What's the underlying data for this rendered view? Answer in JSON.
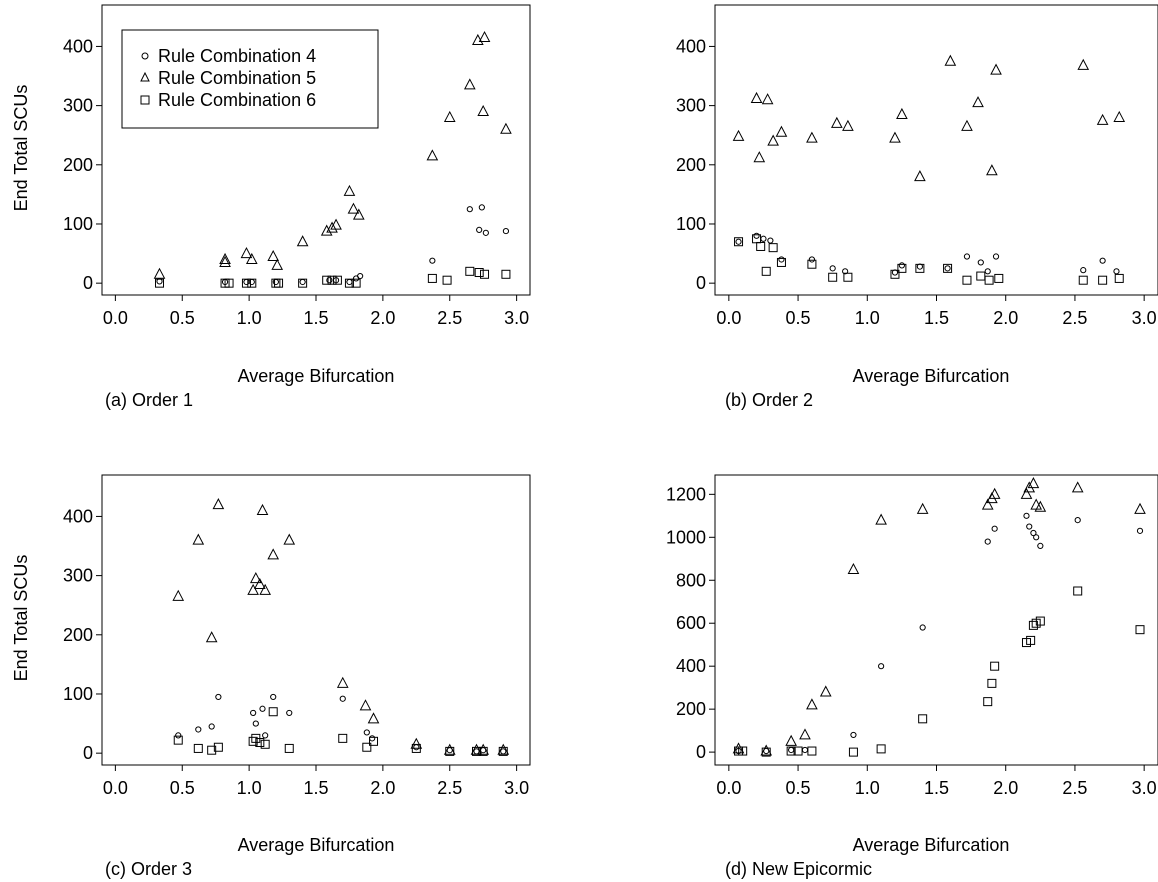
{
  "legend": {
    "entries": [
      {
        "name": "Rule Combination 4",
        "marker": "circle"
      },
      {
        "name": "Rule Combination 5",
        "marker": "triangle"
      },
      {
        "name": "Rule Combination 6",
        "marker": "square"
      }
    ]
  },
  "chart_data": [
    {
      "type": "scatter",
      "panel_label": "(a) Order 1",
      "xlabel": "Average Bifurcation",
      "ylabel": "End Total SCUs",
      "xlim": [
        -0.1,
        3.1
      ],
      "ylim": [
        -20,
        470
      ],
      "xticks": [
        "0.0",
        "0.5",
        "1.0",
        "1.5",
        "2.0",
        "2.5",
        "3.0"
      ],
      "yticks": [
        "0",
        "100",
        "200",
        "300",
        "400"
      ],
      "legend": "top-left",
      "series": [
        {
          "name": "Rule Combination 4",
          "marker": "circle",
          "points": [
            [
              0.33,
              3
            ],
            [
              0.82,
              2
            ],
            [
              0.98,
              2
            ],
            [
              1.02,
              2
            ],
            [
              1.2,
              2
            ],
            [
              1.4,
              2
            ],
            [
              1.6,
              5
            ],
            [
              1.65,
              5
            ],
            [
              1.75,
              2
            ],
            [
              1.8,
              8
            ],
            [
              1.83,
              12
            ],
            [
              2.37,
              38
            ],
            [
              2.65,
              125
            ],
            [
              2.72,
              90
            ],
            [
              2.74,
              128
            ],
            [
              2.77,
              85
            ],
            [
              2.92,
              88
            ]
          ]
        },
        {
          "name": "Rule Combination 5",
          "marker": "triangle",
          "points": [
            [
              0.33,
              15
            ],
            [
              0.82,
              40
            ],
            [
              0.82,
              35
            ],
            [
              0.98,
              50
            ],
            [
              1.02,
              40
            ],
            [
              1.18,
              45
            ],
            [
              1.21,
              30
            ],
            [
              1.4,
              70
            ],
            [
              1.58,
              88
            ],
            [
              1.62,
              93
            ],
            [
              1.65,
              98
            ],
            [
              1.75,
              155
            ],
            [
              1.78,
              125
            ],
            [
              1.82,
              115
            ],
            [
              2.37,
              215
            ],
            [
              2.5,
              280
            ],
            [
              2.65,
              335
            ],
            [
              2.71,
              410
            ],
            [
              2.76,
              415
            ],
            [
              2.75,
              290
            ],
            [
              2.92,
              260
            ]
          ]
        },
        {
          "name": "Rule Combination 6",
          "marker": "square",
          "points": [
            [
              0.33,
              0
            ],
            [
              0.82,
              0
            ],
            [
              0.85,
              0
            ],
            [
              0.98,
              0
            ],
            [
              1.02,
              0
            ],
            [
              1.2,
              0
            ],
            [
              1.22,
              0
            ],
            [
              1.4,
              0
            ],
            [
              1.58,
              5
            ],
            [
              1.62,
              5
            ],
            [
              1.66,
              5
            ],
            [
              1.75,
              0
            ],
            [
              1.8,
              0
            ],
            [
              2.37,
              8
            ],
            [
              2.48,
              5
            ],
            [
              2.65,
              20
            ],
            [
              2.72,
              18
            ],
            [
              2.76,
              15
            ],
            [
              2.92,
              15
            ]
          ]
        }
      ]
    },
    {
      "type": "scatter",
      "panel_label": "(b) Order 2",
      "xlabel": "Average Bifurcation",
      "ylabel": "",
      "xlim": [
        -0.1,
        3.1
      ],
      "ylim": [
        -20,
        470
      ],
      "xticks": [
        "0.0",
        "0.5",
        "1.0",
        "1.5",
        "2.0",
        "2.5",
        "3.0"
      ],
      "yticks": [
        "0",
        "100",
        "200",
        "300",
        "400"
      ],
      "legend": "none",
      "series": [
        {
          "name": "Rule Combination 4",
          "marker": "circle",
          "points": [
            [
              0.07,
              70
            ],
            [
              0.2,
              80
            ],
            [
              0.25,
              75
            ],
            [
              0.3,
              72
            ],
            [
              0.38,
              40
            ],
            [
              0.6,
              40
            ],
            [
              0.75,
              25
            ],
            [
              0.84,
              20
            ],
            [
              1.2,
              18
            ],
            [
              1.25,
              30
            ],
            [
              1.38,
              28
            ],
            [
              1.58,
              25
            ],
            [
              1.72,
              45
            ],
            [
              1.82,
              35
            ],
            [
              1.87,
              20
            ],
            [
              1.93,
              45
            ],
            [
              2.56,
              22
            ],
            [
              2.7,
              38
            ],
            [
              2.8,
              20
            ]
          ]
        },
        {
          "name": "Rule Combination 5",
          "marker": "triangle",
          "points": [
            [
              0.07,
              248
            ],
            [
              0.2,
              312
            ],
            [
              0.22,
              212
            ],
            [
              0.28,
              310
            ],
            [
              0.32,
              240
            ],
            [
              0.38,
              255
            ],
            [
              0.6,
              245
            ],
            [
              0.78,
              270
            ],
            [
              0.86,
              265
            ],
            [
              1.2,
              245
            ],
            [
              1.25,
              285
            ],
            [
              1.38,
              180
            ],
            [
              1.6,
              375
            ],
            [
              1.72,
              265
            ],
            [
              1.8,
              305
            ],
            [
              1.9,
              190
            ],
            [
              1.93,
              360
            ],
            [
              2.56,
              368
            ],
            [
              2.7,
              275
            ],
            [
              2.82,
              280
            ]
          ]
        },
        {
          "name": "Rule Combination 6",
          "marker": "square",
          "points": [
            [
              0.07,
              70
            ],
            [
              0.2,
              75
            ],
            [
              0.23,
              62
            ],
            [
              0.27,
              20
            ],
            [
              0.32,
              60
            ],
            [
              0.38,
              35
            ],
            [
              0.6,
              32
            ],
            [
              0.75,
              10
            ],
            [
              0.86,
              10
            ],
            [
              1.2,
              15
            ],
            [
              1.25,
              25
            ],
            [
              1.38,
              25
            ],
            [
              1.58,
              25
            ],
            [
              1.72,
              5
            ],
            [
              1.82,
              12
            ],
            [
              1.88,
              5
            ],
            [
              1.95,
              8
            ],
            [
              2.56,
              5
            ],
            [
              2.7,
              5
            ],
            [
              2.82,
              8
            ]
          ]
        }
      ]
    },
    {
      "type": "scatter",
      "panel_label": "(c) Order 3",
      "xlabel": "Average Bifurcation",
      "ylabel": "End Total SCUs",
      "xlim": [
        -0.1,
        3.1
      ],
      "ylim": [
        -20,
        470
      ],
      "xticks": [
        "0.0",
        "0.5",
        "1.0",
        "1.5",
        "2.0",
        "2.5",
        "3.0"
      ],
      "yticks": [
        "0",
        "100",
        "200",
        "300",
        "400"
      ],
      "legend": "none",
      "series": [
        {
          "name": "Rule Combination 4",
          "marker": "circle",
          "points": [
            [
              0.47,
              30
            ],
            [
              0.62,
              40
            ],
            [
              0.72,
              45
            ],
            [
              0.77,
              95
            ],
            [
              1.03,
              68
            ],
            [
              1.05,
              50
            ],
            [
              1.1,
              75
            ],
            [
              1.12,
              30
            ],
            [
              1.18,
              95
            ],
            [
              1.3,
              68
            ],
            [
              1.7,
              92
            ],
            [
              1.88,
              35
            ],
            [
              1.92,
              25
            ],
            [
              2.25,
              10
            ],
            [
              2.5,
              5
            ],
            [
              2.7,
              3
            ],
            [
              2.75,
              5
            ],
            [
              2.9,
              3
            ]
          ]
        },
        {
          "name": "Rule Combination 5",
          "marker": "triangle",
          "points": [
            [
              0.47,
              265
            ],
            [
              0.62,
              360
            ],
            [
              0.72,
              195
            ],
            [
              0.77,
              420
            ],
            [
              1.03,
              275
            ],
            [
              1.05,
              295
            ],
            [
              1.08,
              285
            ],
            [
              1.1,
              410
            ],
            [
              1.12,
              275
            ],
            [
              1.18,
              335
            ],
            [
              1.3,
              360
            ],
            [
              1.7,
              118
            ],
            [
              1.87,
              80
            ],
            [
              1.93,
              58
            ],
            [
              2.25,
              15
            ],
            [
              2.5,
              5
            ],
            [
              2.7,
              5
            ],
            [
              2.75,
              5
            ],
            [
              2.9,
              5
            ]
          ]
        },
        {
          "name": "Rule Combination 6",
          "marker": "square",
          "points": [
            [
              0.47,
              22
            ],
            [
              0.62,
              8
            ],
            [
              0.72,
              5
            ],
            [
              0.77,
              10
            ],
            [
              1.03,
              20
            ],
            [
              1.05,
              25
            ],
            [
              1.08,
              18
            ],
            [
              1.12,
              15
            ],
            [
              1.18,
              70
            ],
            [
              1.3,
              8
            ],
            [
              1.7,
              25
            ],
            [
              1.88,
              10
            ],
            [
              1.93,
              20
            ],
            [
              2.25,
              8
            ],
            [
              2.5,
              3
            ],
            [
              2.7,
              3
            ],
            [
              2.75,
              3
            ],
            [
              2.9,
              3
            ]
          ]
        }
      ]
    },
    {
      "type": "scatter",
      "panel_label": "(d) New Epicormic",
      "xlabel": "Average Bifurcation",
      "ylabel": "",
      "xlim": [
        -0.1,
        3.1
      ],
      "ylim": [
        -60,
        1290
      ],
      "xticks": [
        "0.0",
        "0.5",
        "1.0",
        "1.5",
        "2.0",
        "2.5",
        "3.0"
      ],
      "yticks": [
        "0",
        "200",
        "400",
        "600",
        "800",
        "1000",
        "1200"
      ],
      "legend": "none",
      "series": [
        {
          "name": "Rule Combination 4",
          "marker": "circle",
          "points": [
            [
              0.07,
              5
            ],
            [
              0.27,
              5
            ],
            [
              0.45,
              10
            ],
            [
              0.55,
              10
            ],
            [
              0.9,
              80
            ],
            [
              1.1,
              400
            ],
            [
              1.4,
              580
            ],
            [
              1.87,
              980
            ],
            [
              1.92,
              1040
            ],
            [
              2.15,
              1100
            ],
            [
              2.17,
              1050
            ],
            [
              2.2,
              1020
            ],
            [
              2.22,
              1000
            ],
            [
              2.25,
              960
            ],
            [
              2.52,
              1080
            ],
            [
              2.97,
              1030
            ]
          ]
        },
        {
          "name": "Rule Combination 5",
          "marker": "triangle",
          "points": [
            [
              0.07,
              15
            ],
            [
              0.27,
              5
            ],
            [
              0.45,
              50
            ],
            [
              0.55,
              80
            ],
            [
              0.6,
              220
            ],
            [
              0.7,
              280
            ],
            [
              0.9,
              850
            ],
            [
              1.1,
              1080
            ],
            [
              1.4,
              1130
            ],
            [
              1.87,
              1150
            ],
            [
              1.9,
              1180
            ],
            [
              1.92,
              1200
            ],
            [
              2.15,
              1200
            ],
            [
              2.17,
              1230
            ],
            [
              2.2,
              1250
            ],
            [
              2.22,
              1150
            ],
            [
              2.25,
              1140
            ],
            [
              2.52,
              1230
            ],
            [
              2.97,
              1130
            ]
          ]
        },
        {
          "name": "Rule Combination 6",
          "marker": "square",
          "points": [
            [
              0.07,
              5
            ],
            [
              0.1,
              5
            ],
            [
              0.27,
              0
            ],
            [
              0.45,
              5
            ],
            [
              0.5,
              5
            ],
            [
              0.6,
              5
            ],
            [
              0.9,
              0
            ],
            [
              1.1,
              15
            ],
            [
              1.4,
              155
            ],
            [
              1.87,
              235
            ],
            [
              1.9,
              320
            ],
            [
              1.92,
              400
            ],
            [
              2.15,
              510
            ],
            [
              2.18,
              520
            ],
            [
              2.2,
              590
            ],
            [
              2.22,
              600
            ],
            [
              2.25,
              610
            ],
            [
              2.52,
              750
            ],
            [
              2.97,
              570
            ]
          ]
        }
      ]
    }
  ]
}
